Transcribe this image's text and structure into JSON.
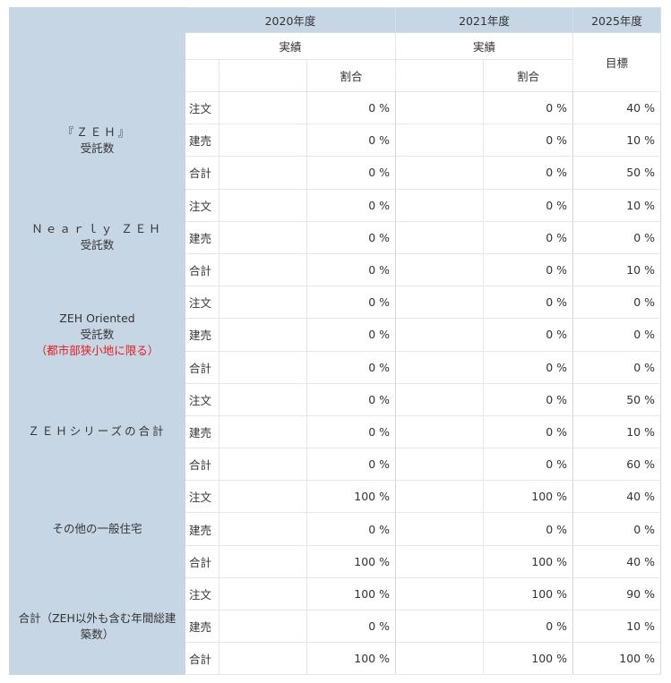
{
  "years": [
    "2020年度",
    "2021年度",
    "2025年度"
  ],
  "jisseki_label": "実績",
  "mokuhyo_label": "目標",
  "wariai_label": "割合",
  "groups": [
    {
      "title": "『ＺＥＨ』",
      "title2": "受託数",
      "note": "",
      "rows": [
        {
          "label": "注文",
          "y2020": "0 %",
          "y2021": "0 %",
          "y2025": "40 %"
        },
        {
          "label": "建売",
          "y2020": "0 %",
          "y2021": "0 %",
          "y2025": "10 %"
        },
        {
          "label": "合計",
          "y2020": "0 %",
          "y2021": "0 %",
          "y2025": "50 %"
        }
      ]
    },
    {
      "title": "Ｎｅａｒｌｙ ＺＥＨ",
      "title2": "受託数",
      "note": "",
      "rows": [
        {
          "label": "注文",
          "y2020": "0 %",
          "y2021": "0 %",
          "y2025": "10 %"
        },
        {
          "label": "建売",
          "y2020": "0 %",
          "y2021": "0 %",
          "y2025": "0 %"
        },
        {
          "label": "合計",
          "y2020": "0 %",
          "y2021": "0 %",
          "y2025": "10 %"
        }
      ]
    },
    {
      "title": "ZEH Oriented",
      "title2": "受託数",
      "note": "（都市部狭小地に限る）",
      "rows": [
        {
          "label": "注文",
          "y2020": "0 %",
          "y2021": "0 %",
          "y2025": "0 %"
        },
        {
          "label": "建売",
          "y2020": "0 %",
          "y2021": "0 %",
          "y2025": "0 %"
        },
        {
          "label": "合計",
          "y2020": "0 %",
          "y2021": "0 %",
          "y2025": "0 %"
        }
      ]
    },
    {
      "title": "ＺＥＨシリーズの合計",
      "title2": "",
      "note": "",
      "rows": [
        {
          "label": "注文",
          "y2020": "0 %",
          "y2021": "0 %",
          "y2025": "50 %"
        },
        {
          "label": "建売",
          "y2020": "0 %",
          "y2021": "0 %",
          "y2025": "10 %"
        },
        {
          "label": "合計",
          "y2020": "0 %",
          "y2021": "0 %",
          "y2025": "60 %"
        }
      ]
    },
    {
      "title": "その他の一般住宅",
      "title2": "",
      "note": "",
      "rows": [
        {
          "label": "注文",
          "y2020": "100 %",
          "y2021": "100 %",
          "y2025": "40 %"
        },
        {
          "label": "建売",
          "y2020": "0 %",
          "y2021": "0 %",
          "y2025": "0 %"
        },
        {
          "label": "合計",
          "y2020": "100 %",
          "y2021": "100 %",
          "y2025": "40 %"
        }
      ]
    },
    {
      "title": "合計（ZEH以外も含む年間総建築数）",
      "title2": "",
      "note": "",
      "rows": [
        {
          "label": "注文",
          "y2020": "100 %",
          "y2021": "100 %",
          "y2025": "90 %"
        },
        {
          "label": "建売",
          "y2020": "0 %",
          "y2021": "0 %",
          "y2025": "10 %"
        },
        {
          "label": "合計",
          "y2020": "100 %",
          "y2021": "100 %",
          "y2025": "100 %"
        }
      ]
    }
  ]
}
